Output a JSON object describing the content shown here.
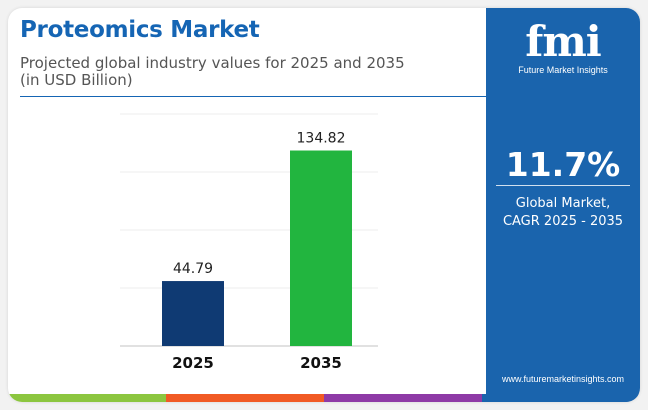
{
  "header": {
    "title": "Proteomics Market",
    "subtitle_line1": "Projected global industry values for 2025 and 2035",
    "subtitle_line2": "(in USD Billion)"
  },
  "chart_data": {
    "type": "bar",
    "categories": [
      "2025",
      "2035"
    ],
    "values": [
      44.79,
      134.82
    ],
    "value_labels": [
      "44.79",
      "134.82"
    ],
    "bar_colors": [
      "#0f3a73",
      "#22b53f"
    ],
    "title": "",
    "xlabel": "",
    "ylabel": "",
    "ylim": [
      0,
      160
    ],
    "y_gridlines": [
      0,
      40,
      80,
      120,
      160
    ],
    "grid": true,
    "legend": "none"
  },
  "sidebar": {
    "logo_mark": "fmi",
    "logo_text": "Future Market Insights",
    "cagr_value": "11.7%",
    "cagr_label_line1": "Global Market,",
    "cagr_label_line2": "CAGR 2025 - 2035",
    "website": "www.futuremarketinsights.com"
  },
  "colors": {
    "title": "#1565b4",
    "sidebar": "#1a64ad",
    "strip": [
      "#8cc63f",
      "#f15a24",
      "#8e3aa6",
      "#1a64ad"
    ]
  }
}
